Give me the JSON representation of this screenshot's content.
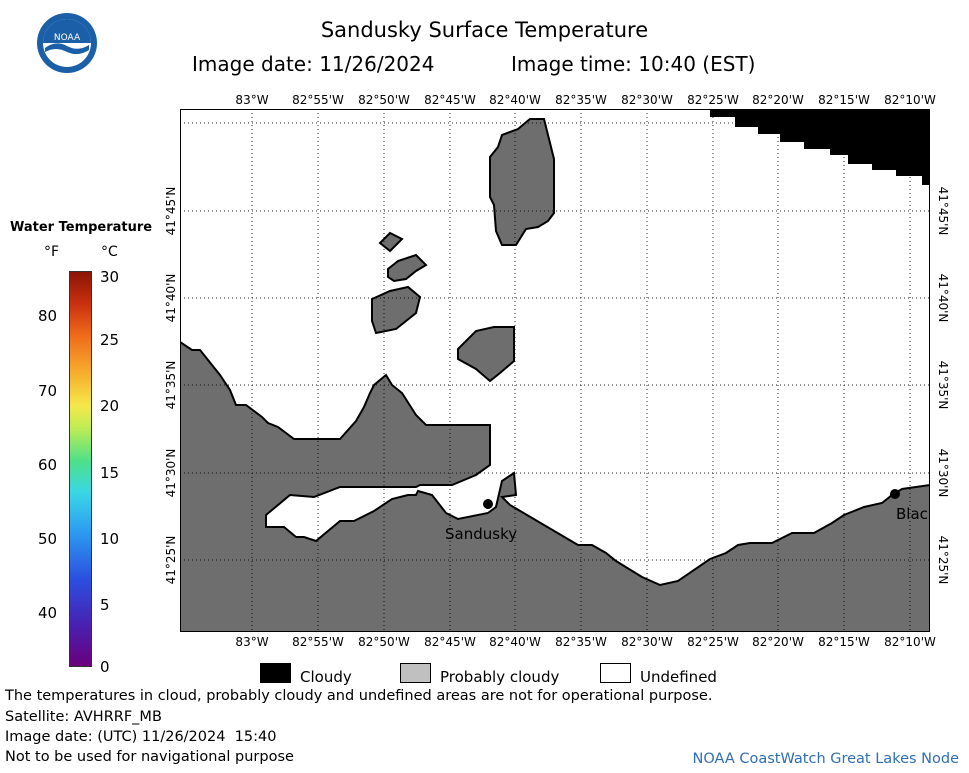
{
  "header": {
    "title": "Sandusky Surface Temperature",
    "image_date_label": "Image date: 11/26/2024",
    "image_time_label": "Image time: 10:40 (EST)"
  },
  "logo": {
    "text": "NOAA",
    "icon": "noaa-logo-icon"
  },
  "colorbar": {
    "title": "Water Temperature",
    "unit_f": "°F",
    "unit_c": "°C",
    "fahrenheit_ticks": [
      "80",
      "70",
      "60",
      "50",
      "40"
    ],
    "celsius_ticks": [
      "30",
      "25",
      "20",
      "15",
      "10",
      "5",
      "0"
    ],
    "range_c": [
      0,
      30
    ]
  },
  "map": {
    "lon_ticks": [
      "83°W",
      "82°55'W",
      "82°50'W",
      "82°45'W",
      "82°40'W",
      "82°35'W",
      "82°30'W",
      "82°25'W",
      "82°20'W",
      "82°15'W",
      "82°10'W"
    ],
    "lat_ticks": [
      "41°45'N",
      "41°40'N",
      "41°35'N",
      "41°30'N",
      "41°25'N"
    ],
    "city_sandusky": "Sandusky",
    "city_blac": "Blac",
    "colors": {
      "land": "#6e6e6e",
      "cloud": "#000000",
      "water_undefined": "#ffffff"
    }
  },
  "legend": {
    "cloudy": "Cloudy",
    "probably_cloudy": "Probably cloudy",
    "undefined": "Undefined"
  },
  "footer": {
    "disclaimer": "The temperatures in cloud, probably cloudy and undefined areas are not for operational purpose.",
    "satellite": "Satellite: AVHRRF_MB",
    "utc_date": "Image date: (UTC) 11/26/2024  15:40",
    "nav_warning": "Not to be used for navigational purpose",
    "credit": "NOAA CoastWatch Great Lakes Node"
  }
}
